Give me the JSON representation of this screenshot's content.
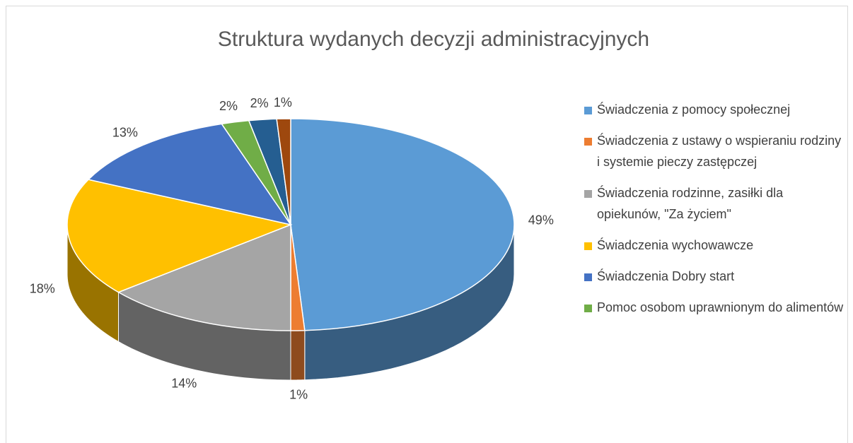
{
  "chart_data": {
    "type": "pie3d",
    "title": "Struktura wydanych decyzji administracyjnych",
    "categories": [
      "Świadczenia z pomocy społecznej",
      "Świadczenia z ustawy o wspieraniu rodziny i systemie pieczy zastępczej",
      "Świadczenia rodzinne, zasiłki dla opiekunów, \"Za życiem\"",
      "Świadczenia wychowawcze",
      "Świadczenia Dobry start",
      "Pomoc osobom uprawnionym do alimentów",
      null,
      null
    ],
    "values": [
      49,
      1,
      14,
      18,
      13,
      2,
      2,
      1
    ],
    "value_labels": [
      "49%",
      "1%",
      "14%",
      "18%",
      "13%",
      "2%",
      "2%",
      "1%"
    ],
    "colors": [
      "#5b9bd5",
      "#ed7d31",
      "#a5a5a5",
      "#ffc000",
      "#4472c4",
      "#70ad47",
      "#255e91",
      "#9e480e"
    ],
    "legend": "right"
  }
}
